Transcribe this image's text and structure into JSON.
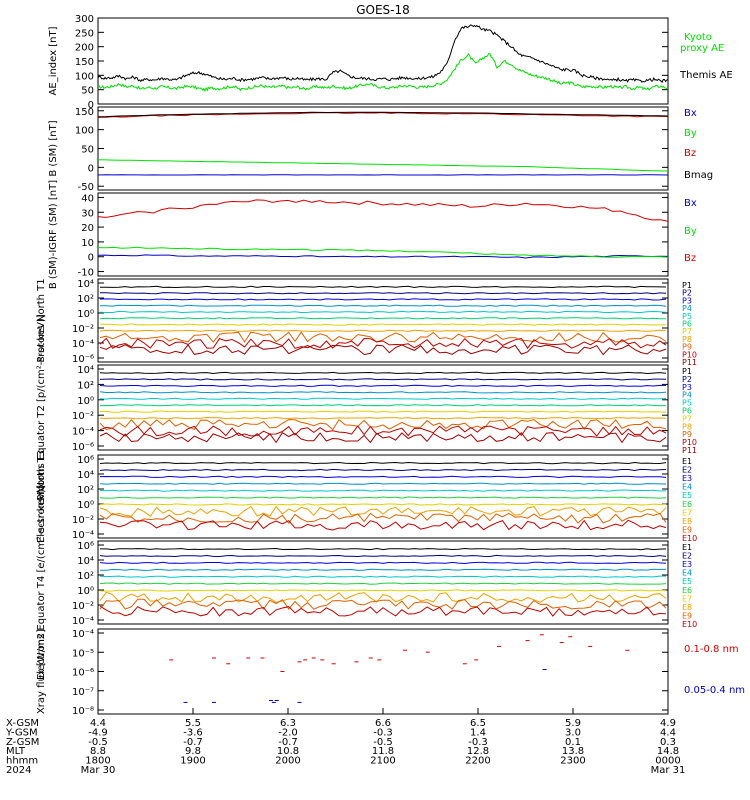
{
  "title": "GOES-18",
  "colors": {
    "black": "#000000",
    "green": "#00e000",
    "red": "#d40000",
    "darkred": "#8b0000",
    "blue": "#0000c8"
  },
  "chart_data": [
    {
      "type": "line",
      "ylabel": "AE_index [nT]",
      "yticks": [
        "300",
        "250",
        "200",
        "150",
        "100",
        "50",
        "0"
      ],
      "ylim": [
        0,
        300
      ],
      "series": [
        {
          "name": "Kyoto proxy AE",
          "color": "#00e000",
          "values": [
            60,
            58,
            62,
            70,
            60,
            64,
            52,
            58,
            55,
            60,
            57,
            54,
            60,
            62,
            55,
            50,
            56,
            54,
            58,
            62,
            50,
            56,
            60,
            64,
            58,
            60,
            62,
            56,
            60,
            52,
            58,
            60,
            56,
            62,
            58,
            54,
            60,
            66,
            70,
            62,
            58,
            56,
            60,
            64,
            62,
            58,
            60,
            65,
            70,
            85,
            120,
            155,
            170,
            140,
            160,
            175,
            130,
            150,
            140,
            120,
            110,
            100,
            95,
            90,
            80,
            70,
            75,
            68,
            60,
            62,
            60,
            58,
            62,
            56,
            60,
            54,
            58,
            50,
            60,
            62,
            55
          ]
        },
        {
          "name": "Themis AE",
          "color": "#000000",
          "values": [
            95,
            90,
            92,
            98,
            88,
            94,
            82,
            86,
            84,
            90,
            86,
            84,
            96,
            105,
            110,
            105,
            95,
            88,
            86,
            90,
            84,
            86,
            88,
            92,
            88,
            90,
            92,
            86,
            90,
            84,
            86,
            88,
            86,
            110,
            115,
            100,
            92,
            90,
            88,
            86,
            88,
            86,
            90,
            92,
            90,
            88,
            92,
            95,
            110,
            140,
            220,
            265,
            270,
            275,
            260,
            255,
            240,
            220,
            200,
            175,
            165,
            160,
            150,
            140,
            130,
            120,
            120,
            115,
            100,
            95,
            90,
            88,
            82,
            86,
            80,
            84,
            80,
            82,
            86,
            80,
            82
          ]
        }
      ]
    },
    {
      "type": "line",
      "ylabel": "B (SM) [nT]",
      "yticks": [
        "150",
        "100",
        "50",
        "0",
        "-50"
      ],
      "ylim": [
        -60,
        160
      ],
      "series": [
        {
          "name": "Bx",
          "color": "#0000c8",
          "values": [
            -20,
            -20,
            -20,
            -20,
            -20,
            -20,
            -20,
            -20,
            -20,
            -20,
            -20,
            -20,
            -20
          ]
        },
        {
          "name": "By",
          "color": "#00e000",
          "values": [
            20,
            18,
            16,
            14,
            12,
            10,
            8,
            6,
            4,
            2,
            -2,
            -6,
            -10
          ]
        },
        {
          "name": "Bz",
          "color": "#d40000",
          "values": [
            132,
            136,
            139,
            141,
            143,
            144,
            144,
            143,
            142,
            140,
            138,
            136,
            134
          ]
        },
        {
          "name": "Bmag",
          "color": "#000000",
          "values": [
            134,
            138,
            141,
            143,
            145,
            146,
            146,
            145,
            144,
            142,
            140,
            138,
            136
          ]
        }
      ]
    },
    {
      "type": "line",
      "ylabel": "B (SM)-IGRF (SM) [nT]",
      "yticks": [
        "40",
        "30",
        "20",
        "10",
        "0",
        "-10"
      ],
      "ylim": [
        -13,
        43
      ],
      "series": [
        {
          "name": "Bx",
          "color": "#0000c8",
          "values": [
            1,
            1,
            0.5,
            0.5,
            0.5,
            0,
            0,
            0,
            0,
            -0.5,
            0,
            0.5,
            0.5
          ]
        },
        {
          "name": "By",
          "color": "#00e000",
          "values": [
            6,
            6,
            5.5,
            5,
            5,
            4.5,
            4,
            3.5,
            2,
            1,
            0.5,
            0,
            0
          ]
        },
        {
          "name": "Bz",
          "color": "#d40000",
          "values": [
            26,
            30,
            34,
            37,
            38,
            37,
            36,
            35,
            34,
            36,
            34,
            31,
            23
          ]
        }
      ]
    },
    {
      "type": "line",
      "ylabel": "Protons North T1",
      "log": true,
      "yticks": [
        "10⁴",
        "10²",
        "10⁰",
        "10⁻²",
        "10⁻⁴",
        "10⁻⁶"
      ],
      "ylim": [
        -6.6,
        4.4
      ],
      "legend": [
        "P1",
        "P2",
        "P3",
        "P4",
        "P5",
        "P6",
        "P7",
        "P8",
        "P9",
        "P10",
        "P11"
      ]
    },
    {
      "type": "line",
      "ylabel": "Protons Equator T2 [p/(cm²-s-sr-keV)]",
      "log": true,
      "yticks": [
        "10⁴",
        "10²",
        "10⁰",
        "10⁻²",
        "10⁻⁴",
        "10⁻⁶"
      ],
      "ylim": [
        -6.6,
        4.4
      ],
      "legend": [
        "P1",
        "P2",
        "P3",
        "P4",
        "P5",
        "P6",
        "P7",
        "P8",
        "P9",
        "P10",
        "P11"
      ]
    },
    {
      "type": "line",
      "ylabel": "Electrons North T3",
      "log": true,
      "yticks": [
        "10⁶",
        "10⁴",
        "10²",
        "10⁰",
        "10⁻²",
        "10⁻⁴"
      ],
      "ylim": [
        -4.6,
        6.6
      ],
      "legend": [
        "E1",
        "E2",
        "E3",
        "E4",
        "E5",
        "E6",
        "E7",
        "E8",
        "E9",
        "E10"
      ]
    },
    {
      "type": "line",
      "ylabel": "Electrons Equator T4 [e/(cm²-s-sr-keV)]",
      "log": true,
      "yticks": [
        "10⁶",
        "10⁴",
        "10²",
        "10⁰",
        "10⁻²",
        "10⁻⁴"
      ],
      "ylim": [
        -4.6,
        6.6
      ],
      "legend": [
        "E1",
        "E2",
        "E3",
        "E4",
        "E5",
        "E6",
        "E7",
        "E8",
        "E9",
        "E10"
      ]
    },
    {
      "type": "scatter",
      "ylabel": "Xray flux [W/m2]",
      "log": true,
      "yticks": [
        "10⁻⁴",
        "10⁻⁵",
        "10⁻⁶",
        "10⁻⁷",
        "10⁻⁸"
      ],
      "ylim": [
        -8.2,
        -3.8
      ],
      "series": [
        {
          "name": "0.1-0.8 nm",
          "color": "#d40000",
          "points": [
            [
              0.25,
              -5.4
            ],
            [
              0.4,
              -5.3
            ],
            [
              0.45,
              -5.6
            ],
            [
              0.52,
              -5.3
            ],
            [
              0.57,
              -5.3
            ],
            [
              0.64,
              -6.0
            ],
            [
              0.7,
              -5.5
            ],
            [
              0.72,
              -5.4
            ],
            [
              0.75,
              -5.3
            ],
            [
              0.78,
              -5.4
            ],
            [
              0.82,
              -5.6
            ],
            [
              0.9,
              -5.5
            ],
            [
              0.95,
              -5.3
            ],
            [
              0.98,
              -5.4
            ],
            [
              1.07,
              -4.9
            ],
            [
              1.15,
              -5.0
            ],
            [
              1.28,
              -5.6
            ],
            [
              1.32,
              -5.4
            ],
            [
              1.4,
              -4.7
            ],
            [
              1.5,
              -4.4
            ],
            [
              1.55,
              -4.1
            ],
            [
              1.62,
              -4.5
            ],
            [
              1.65,
              -4.2
            ],
            [
              1.72,
              -4.7
            ],
            [
              1.85,
              -4.9
            ]
          ]
        },
        {
          "name": "0.05-0.4 nm",
          "color": "#0000c8",
          "points": [
            [
              0.3,
              -7.6
            ],
            [
              0.4,
              -7.6
            ],
            [
              0.6,
              -7.5
            ],
            [
              0.61,
              -7.6
            ],
            [
              0.62,
              -7.5
            ],
            [
              0.7,
              -7.6
            ],
            [
              1.56,
              -5.9
            ]
          ]
        }
      ]
    }
  ],
  "xaxis": {
    "row_labels": [
      "X-GSM",
      "Y-GSM",
      "Z-GSM",
      "MLT",
      "hhmm",
      "2024"
    ],
    "columns": [
      {
        "values": [
          "4.4",
          "-4.9",
          "-0.5",
          "8.8",
          "1800",
          "Mar 30"
        ]
      },
      {
        "values": [
          "5.5",
          "-3.6",
          "-0.7",
          "9.8",
          "1900",
          ""
        ]
      },
      {
        "values": [
          "6.3",
          "-2.0",
          "-0.7",
          "10.8",
          "2000",
          ""
        ]
      },
      {
        "values": [
          "6.6",
          "-0.3",
          "-0.5",
          "11.8",
          "2100",
          ""
        ]
      },
      {
        "values": [
          "6.5",
          "1.4",
          "-0.3",
          "12.8",
          "2200",
          ""
        ]
      },
      {
        "values": [
          "5.9",
          "3.0",
          "0.1",
          "13.8",
          "2300",
          ""
        ]
      },
      {
        "values": [
          "4.9",
          "4.4",
          "0.3",
          "14.8",
          "0000",
          "Mar 31"
        ]
      }
    ]
  }
}
